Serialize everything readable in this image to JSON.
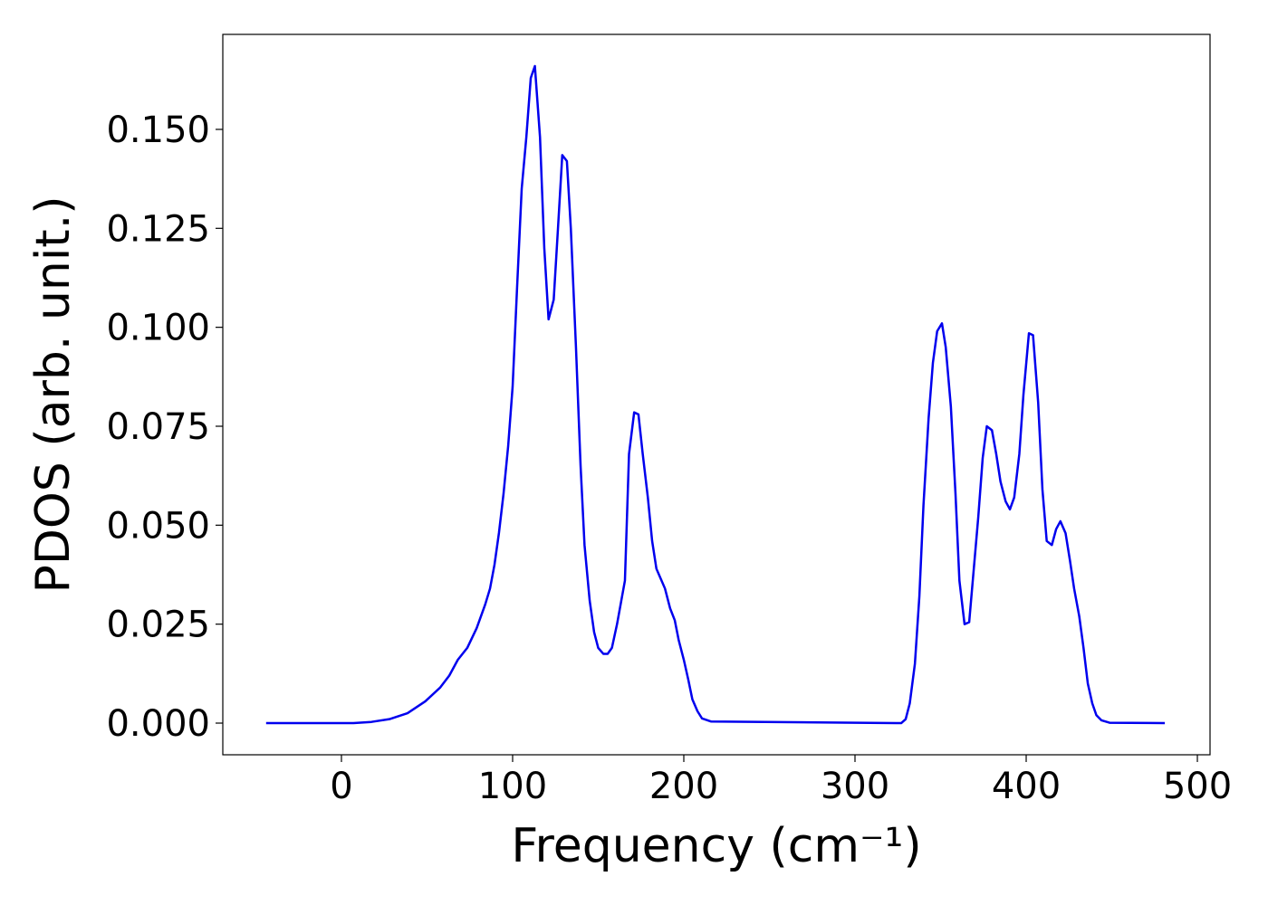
{
  "chart_data": {
    "type": "line",
    "xlabel": "Frequency (cm⁻¹)",
    "ylabel": "PDOS (arb. unit.)",
    "x": [
      -44,
      0,
      7,
      17.5,
      28,
      38.6,
      49,
      57.7,
      63,
      68,
      73.5,
      79,
      84,
      86.8,
      89.4,
      92,
      94.7,
      97.4,
      100,
      102.6,
      105.3,
      108,
      110.6,
      113,
      116,
      118.5,
      121,
      124,
      126.5,
      129,
      131.7,
      134,
      137,
      139.7,
      142,
      145,
      147.6,
      150,
      153,
      155.5,
      158,
      161,
      165.6,
      168,
      171,
      173.5,
      176,
      179,
      181.5,
      184,
      189,
      192,
      194.7,
      197,
      200,
      202.6,
      205,
      208,
      210.6,
      216,
      324,
      327,
      329.6,
      332,
      335,
      337.6,
      340,
      343,
      345.5,
      348,
      350.8,
      353,
      356,
      358.7,
      361,
      364,
      366.7,
      369,
      372,
      374.6,
      377,
      380,
      382.5,
      385,
      388,
      390.5,
      393,
      396,
      398.4,
      401.6,
      404,
      407,
      409.5,
      412,
      415,
      417.5,
      420,
      423,
      425.6,
      428,
      431,
      433.5,
      436,
      438.6,
      441,
      444,
      448.7,
      481
    ],
    "series": [
      {
        "color": "#0000ee",
        "values": [
          0,
          0,
          0,
          0.0003,
          0.001,
          0.0025,
          0.0055,
          0.009,
          0.012,
          0.016,
          0.019,
          0.024,
          0.03,
          0.034,
          0.04,
          0.048,
          0.058,
          0.07,
          0.085,
          0.11,
          0.135,
          0.148,
          0.163,
          0.166,
          0.148,
          0.12,
          0.102,
          0.107,
          0.125,
          0.1435,
          0.142,
          0.125,
          0.095,
          0.065,
          0.045,
          0.031,
          0.023,
          0.019,
          0.0175,
          0.0175,
          0.019,
          0.025,
          0.036,
          0.068,
          0.0785,
          0.078,
          0.068,
          0.057,
          0.046,
          0.039,
          0.034,
          0.029,
          0.026,
          0.021,
          0.016,
          0.011,
          0.006,
          0.003,
          0.0012,
          0.0004,
          0,
          0,
          0.001,
          0.005,
          0.015,
          0.032,
          0.055,
          0.077,
          0.091,
          0.099,
          0.101,
          0.095,
          0.08,
          0.058,
          0.036,
          0.025,
          0.0255,
          0.037,
          0.052,
          0.067,
          0.075,
          0.074,
          0.068,
          0.061,
          0.056,
          0.054,
          0.057,
          0.068,
          0.083,
          0.0985,
          0.098,
          0.081,
          0.059,
          0.046,
          0.045,
          0.049,
          0.051,
          0.048,
          0.041,
          0.034,
          0.027,
          0.019,
          0.01,
          0.005,
          0.002,
          0.0007,
          0.0001,
          0
        ]
      }
    ],
    "xlim": [
      -69.3,
      507.4
    ],
    "ylim": [
      -0.008,
      0.174
    ],
    "xticks": [
      0,
      100,
      200,
      300,
      400,
      500
    ],
    "yticks": [
      {
        "value": 0,
        "label": "0.000"
      },
      {
        "value": 0.025,
        "label": "0.025"
      },
      {
        "value": 0.05,
        "label": "0.050"
      },
      {
        "value": 0.075,
        "label": "0.075"
      },
      {
        "value": 0.1,
        "label": "0.100"
      },
      {
        "value": 0.125,
        "label": "0.125"
      },
      {
        "value": 0.15,
        "label": "0.150"
      }
    ],
    "grid": false
  }
}
